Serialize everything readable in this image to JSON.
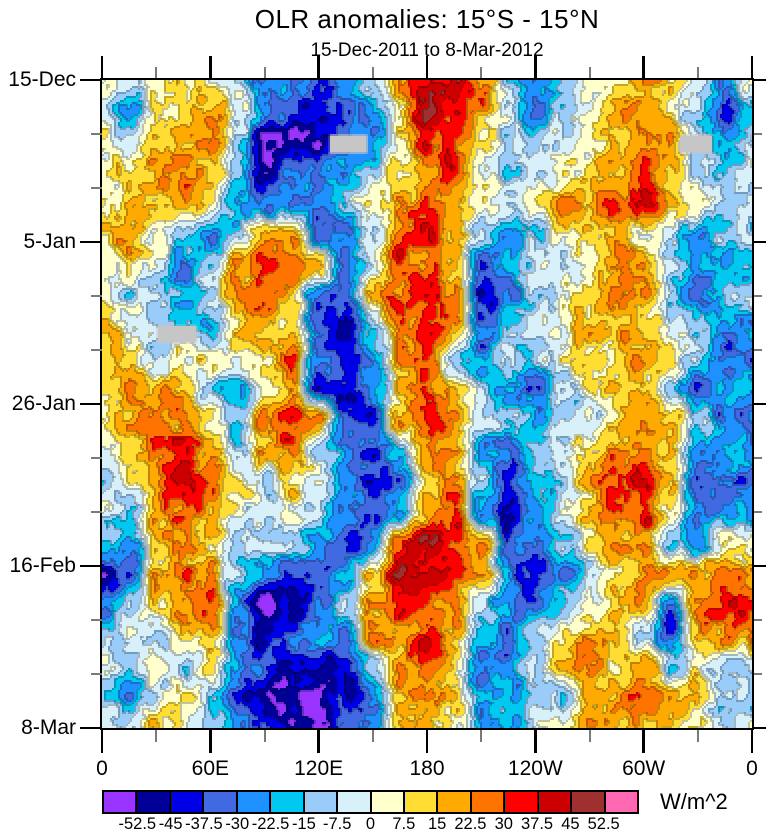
{
  "title": "OLR anomalies: 15°S - 15°N",
  "subtitle": "15-Dec-2011 to 8-Mar-2012",
  "colorbar": {
    "units": "W/m^2",
    "tick_labels": [
      "-52.5",
      "-45",
      "-37.5",
      "-30",
      "-22.5",
      "-15",
      "-7.5",
      "0",
      "7.5",
      "15",
      "22.5",
      "30",
      "37.5",
      "45",
      "52.5"
    ]
  },
  "chart_data": {
    "type": "heatmap",
    "title": "OLR anomalies: 15°S - 15°N",
    "subtitle": "15-Dec-2011 to 8-Mar-2012",
    "units": "W/m^2",
    "xlim": [
      0,
      360
    ],
    "time_span_days": 84,
    "x_ticks": [
      {
        "lon": 0,
        "label": "0"
      },
      {
        "lon": 60,
        "label": "60E"
      },
      {
        "lon": 120,
        "label": "120E"
      },
      {
        "lon": 180,
        "label": "180"
      },
      {
        "lon": 240,
        "label": "120W"
      },
      {
        "lon": 300,
        "label": "60W"
      },
      {
        "lon": 360,
        "label": "0"
      }
    ],
    "x_minor_lons": [
      30,
      90,
      150,
      210,
      270,
      330
    ],
    "y_ticks": [
      {
        "day": 0,
        "label": "15-Dec"
      },
      {
        "day": 21,
        "label": "5-Jan"
      },
      {
        "day": 42,
        "label": "26-Jan"
      },
      {
        "day": 63,
        "label": "16-Feb"
      },
      {
        "day": 84,
        "label": "8-Mar"
      }
    ],
    "y_minor_days": [
      7,
      14,
      28,
      35,
      49,
      56,
      70,
      77
    ],
    "levels": [
      -52.5,
      -45,
      -37.5,
      -30,
      -22.5,
      -15,
      -7.5,
      0,
      7.5,
      15,
      22.5,
      30,
      37.5,
      45,
      52.5
    ],
    "colors": [
      "#9933FF",
      "#000099",
      "#0000E6",
      "#4169E1",
      "#1E90FF",
      "#00C8F0",
      "#99CCF8",
      "#D8F0FA",
      "#FFFFCC",
      "#FFDD33",
      "#FFAA00",
      "#FF7300",
      "#FF0000",
      "#CC0000",
      "#A03030",
      "#FF69B4"
    ],
    "missing_color": "#C6C6C6",
    "lon_grid_step": 15,
    "day_grid_step": 4,
    "values": [
      [
        4,
        -4,
        5,
        12,
        4,
        -10,
        -35,
        -25,
        -38,
        -26,
        -12,
        20,
        36,
        42,
        22,
        -10,
        -30,
        -12,
        5,
        13,
        20,
        12,
        -5,
        -32,
        4
      ],
      [
        -4,
        -30,
        5,
        12,
        18,
        4,
        -25,
        -40,
        -40,
        -33,
        -24,
        13,
        43,
        36,
        20,
        -4,
        -31,
        -11,
        4,
        19,
        19,
        5,
        -12,
        -38,
        -12
      ],
      [
        4,
        -10,
        12,
        19,
        27,
        -11,
        -55,
        -54,
        -48,
        -33,
        -25,
        5,
        35,
        27,
        12,
        -10,
        -12,
        -4,
        5,
        12,
        20,
        19,
        -11,
        -26,
        -11
      ],
      [
        5,
        11,
        19,
        26,
        13,
        -10,
        -47,
        -34,
        -26,
        -25,
        -11,
        12,
        27,
        34,
        4,
        -11,
        -4,
        4,
        12,
        20,
        26,
        12,
        -5,
        -11,
        -5
      ],
      [
        4,
        12,
        19,
        20,
        5,
        -24,
        -33,
        -26,
        -32,
        -12,
        12,
        19,
        26,
        20,
        4,
        -4,
        5,
        18,
        19,
        27,
        34,
        19,
        4,
        -10,
        -10
      ],
      [
        12,
        19,
        5,
        -11,
        -31,
        -12,
        19,
        20,
        -33,
        -32,
        -4,
        27,
        35,
        19,
        -11,
        -30,
        -12,
        4,
        12,
        19,
        5,
        -10,
        -25,
        -11,
        -11
      ],
      [
        4,
        12,
        -4,
        -26,
        -11,
        19,
        27,
        34,
        19,
        -32,
        -11,
        34,
        26,
        12,
        -33,
        -26,
        -4,
        -5,
        4,
        20,
        19,
        -11,
        -24,
        -25,
        -24
      ],
      [
        5,
        -10,
        -11,
        -25,
        -4,
        20,
        26,
        13,
        -31,
        -39,
        19,
        27,
        34,
        26,
        -47,
        -33,
        -11,
        4,
        11,
        26,
        19,
        -12,
        -31,
        -11,
        -11
      ],
      [
        11,
        4,
        -11,
        -12,
        -24,
        12,
        19,
        12,
        -40,
        -46,
        -11,
        27,
        35,
        20,
        -33,
        -11,
        -4,
        5,
        19,
        19,
        12,
        -4,
        -11,
        -24,
        -25
      ],
      [
        18,
        12,
        -10,
        4,
        12,
        4,
        12,
        26,
        -31,
        -40,
        -26,
        20,
        27,
        -11,
        -30,
        -5,
        -11,
        4,
        12,
        13,
        19,
        4,
        -11,
        -31,
        -31
      ],
      [
        12,
        19,
        20,
        12,
        -11,
        -26,
        4,
        19,
        -38,
        -47,
        -31,
        13,
        26,
        19,
        -10,
        -25,
        -31,
        -12,
        5,
        12,
        19,
        -11,
        -33,
        -24,
        -24
      ],
      [
        4,
        19,
        26,
        20,
        4,
        -11,
        27,
        34,
        19,
        -31,
        -38,
        19,
        35,
        26,
        -4,
        -11,
        -26,
        -10,
        -4,
        12,
        26,
        19,
        -11,
        -30,
        -30
      ],
      [
        -4,
        12,
        27,
        35,
        19,
        -11,
        20,
        26,
        -10,
        -26,
        -39,
        -12,
        20,
        19,
        -24,
        -31,
        -11,
        -5,
        12,
        20,
        27,
        12,
        -33,
        -26,
        -26
      ],
      [
        -10,
        4,
        19,
        34,
        26,
        12,
        -11,
        12,
        -4,
        -30,
        -38,
        -32,
        13,
        19,
        -11,
        -37,
        -25,
        -11,
        19,
        35,
        36,
        19,
        -38,
        -31,
        -31
      ],
      [
        -4,
        -11,
        20,
        26,
        19,
        4,
        -10,
        5,
        -11,
        -26,
        -33,
        -25,
        19,
        34,
        -30,
        -46,
        -26,
        -4,
        13,
        27,
        34,
        4,
        -32,
        -24,
        -24
      ],
      [
        -11,
        -30,
        12,
        19,
        13,
        -10,
        -4,
        -11,
        -25,
        -38,
        -26,
        36,
        43,
        35,
        26,
        -33,
        -31,
        -11,
        4,
        19,
        20,
        -11,
        -26,
        4,
        4
      ],
      [
        -46,
        -33,
        19,
        26,
        19,
        -11,
        -26,
        -31,
        -39,
        -25,
        12,
        41,
        42,
        35,
        19,
        -26,
        -46,
        -31,
        -11,
        5,
        19,
        26,
        20,
        27,
        19
      ],
      [
        -32,
        -11,
        12,
        19,
        26,
        -25,
        -54,
        -47,
        -33,
        -11,
        19,
        34,
        27,
        20,
        -10,
        -26,
        -30,
        -11,
        -4,
        12,
        19,
        -31,
        26,
        35,
        34
      ],
      [
        -10,
        4,
        -11,
        12,
        19,
        -31,
        -46,
        -33,
        -26,
        -30,
        26,
        19,
        34,
        19,
        -24,
        -32,
        -11,
        4,
        19,
        20,
        -11,
        -38,
        19,
        20,
        20
      ],
      [
        -4,
        -11,
        4,
        -10,
        5,
        -26,
        -31,
        -47,
        -39,
        -45,
        -11,
        19,
        26,
        12,
        -25,
        -26,
        -4,
        12,
        26,
        13,
        19,
        -11,
        4,
        -10,
        -10
      ],
      [
        -11,
        -24,
        -4,
        12,
        -11,
        -37,
        -48,
        -54,
        -55,
        -46,
        -32,
        19,
        20,
        12,
        -26,
        -25,
        -11,
        -10,
        12,
        19,
        26,
        19,
        12,
        -11,
        -11
      ],
      [
        4,
        -10,
        12,
        5,
        -11,
        -31,
        -45,
        -47,
        -53,
        -38,
        -25,
        12,
        19,
        4,
        -19,
        -24,
        -4,
        4,
        18,
        12,
        19,
        13,
        4,
        -4,
        4
      ]
    ],
    "missing_patches": [
      {
        "lon0": 126,
        "lon1": 147,
        "day0": 7.1,
        "day1": 9.5
      },
      {
        "lon0": 320,
        "lon1": 338,
        "day0": 7.1,
        "day1": 9.5
      },
      {
        "lon0": 30.5,
        "lon1": 52.5,
        "day0": 31.8,
        "day1": 34.1
      }
    ]
  }
}
